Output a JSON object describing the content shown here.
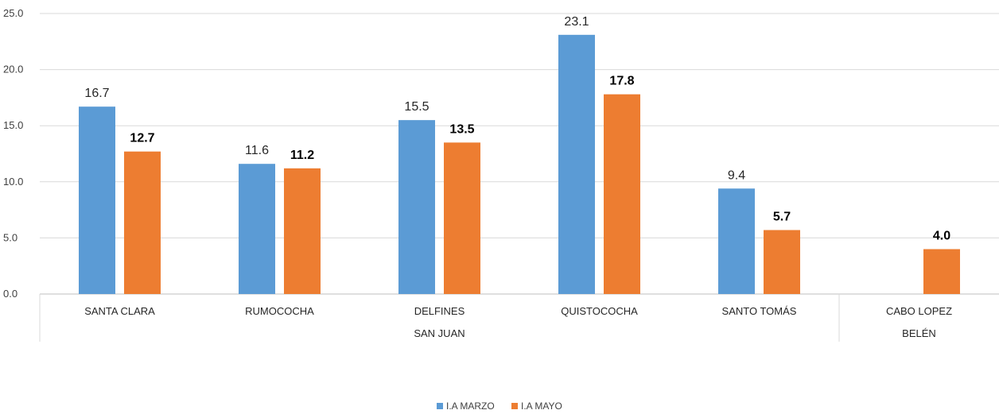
{
  "chart_data": {
    "type": "bar",
    "categories": [
      "SANTA CLARA",
      "RUMOCOCHA",
      "DELFINES",
      "QUISTOCOCHA",
      "SANTO TOMÁS",
      "CABO LOPEZ"
    ],
    "groups": [
      {
        "label": "SAN JUAN",
        "categories": [
          "SANTA CLARA",
          "RUMOCOCHA",
          "DELFINES",
          "QUISTOCOCHA",
          "SANTO TOMÁS"
        ]
      },
      {
        "label": "BELÉN",
        "categories": [
          "CABO LOPEZ"
        ]
      }
    ],
    "series": [
      {
        "name": "I.A MARZO",
        "color": "#5B9BD5",
        "values": [
          16.7,
          11.6,
          15.5,
          23.1,
          9.4,
          null
        ],
        "labels": [
          "16.7",
          "11.6",
          "15.5",
          "23.1",
          "9.4",
          ""
        ]
      },
      {
        "name": "I.A MAYO",
        "color": "#ED7D31",
        "values": [
          12.7,
          11.2,
          13.5,
          17.8,
          5.7,
          4.0
        ],
        "labels": [
          "12.7",
          "11.2",
          "13.5",
          "17.8",
          "5.7",
          "4.0"
        ]
      }
    ],
    "ylim": [
      0,
      25
    ],
    "yticks": [
      "0.0",
      "5.0",
      "10.0",
      "15.0",
      "20.0",
      "25.0"
    ],
    "ytick_values": [
      0,
      5,
      10,
      15,
      20,
      25
    ],
    "grid": true,
    "legend_position": "bottom-center",
    "title": "",
    "xlabel": "",
    "ylabel": ""
  }
}
